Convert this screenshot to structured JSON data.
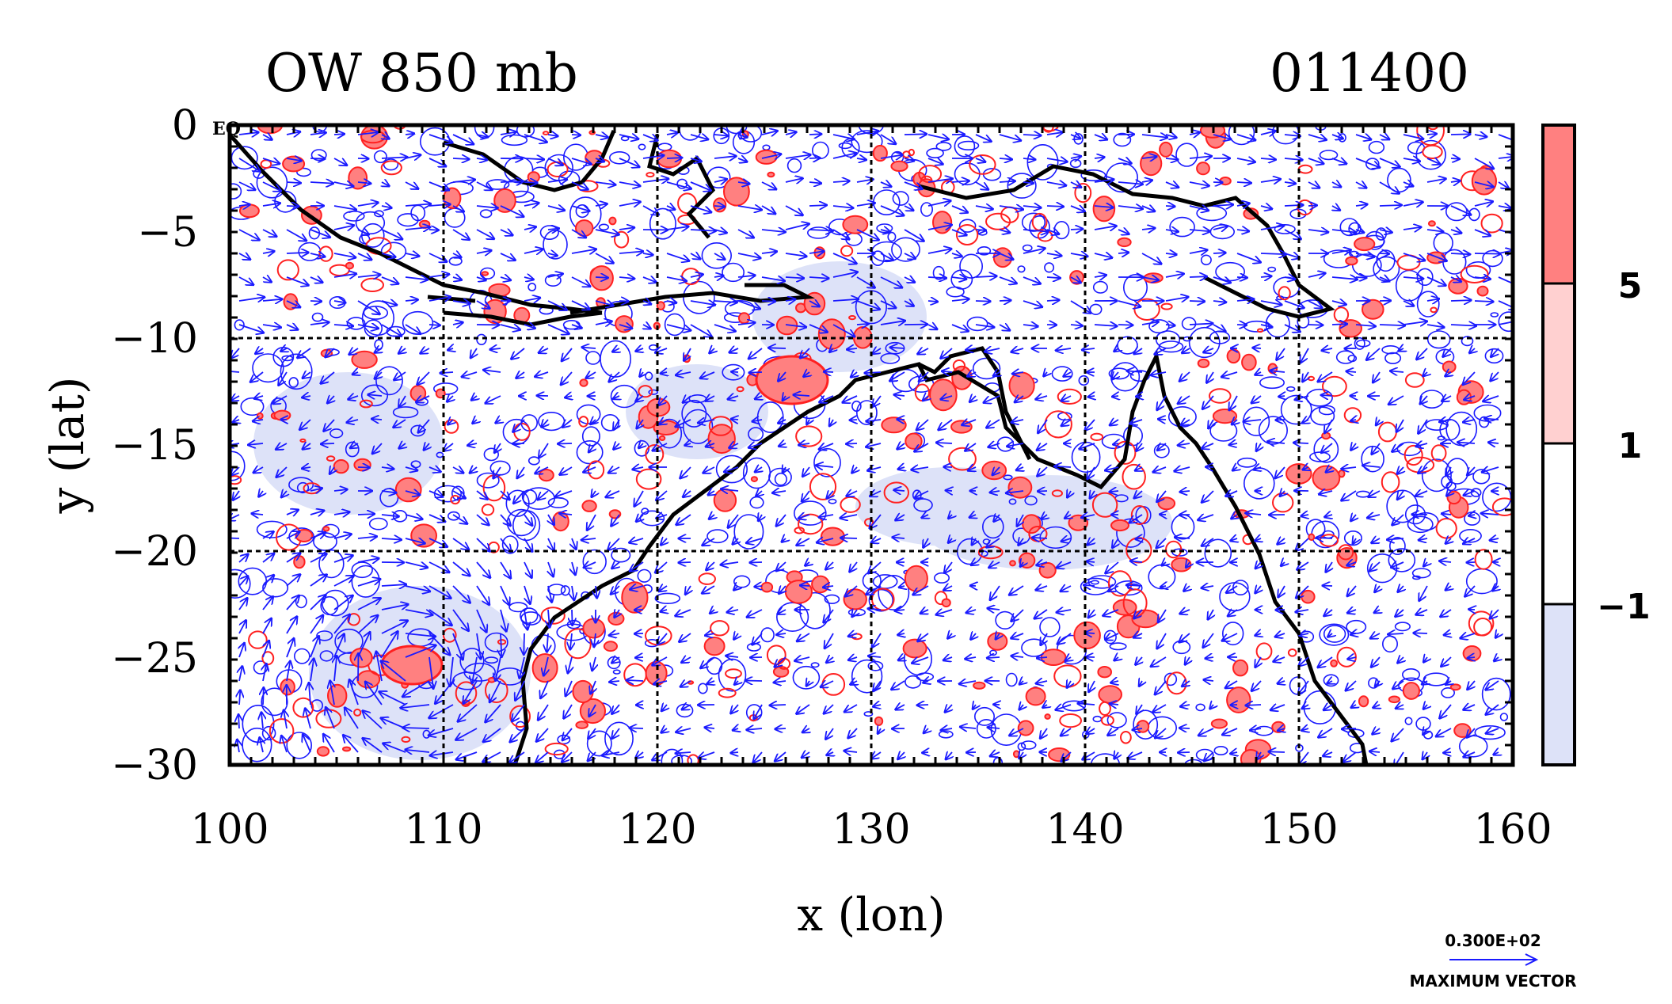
{
  "title_left": "OW 850 mb",
  "title_right": "011400",
  "corner_label": "EQ",
  "x_axis": {
    "label": "x (lon)",
    "ticks": [
      "100",
      "110",
      "120",
      "130",
      "140",
      "150",
      "160"
    ]
  },
  "y_axis": {
    "label": "y (lat)",
    "ticks": [
      "0",
      "−5",
      "−10",
      "−15",
      "−20",
      "−25",
      "−30"
    ]
  },
  "colorbar": {
    "labels": [
      "5",
      "1",
      "−1"
    ],
    "colors": {
      "strong_positive": "#ff8080",
      "weak_positive": "#ffd0d0",
      "neutral": "#ffffff",
      "negative": "#dde2f8"
    }
  },
  "vector_legend": {
    "value": "0.300E+02",
    "caption": "MAXIMUM VECTOR"
  },
  "colors": {
    "vector": "#1a1aff",
    "contour_positive": "#ff2020",
    "coastline": "#000000"
  },
  "chart_data": {
    "type": "heatmap",
    "variable": "OW 850 mb",
    "time": "011400",
    "x_range": [
      100,
      160
    ],
    "y_range": [
      -30,
      0
    ],
    "grid": true,
    "colorbar_levels": [
      -1,
      1,
      5
    ],
    "vector_max": 30.0
  }
}
